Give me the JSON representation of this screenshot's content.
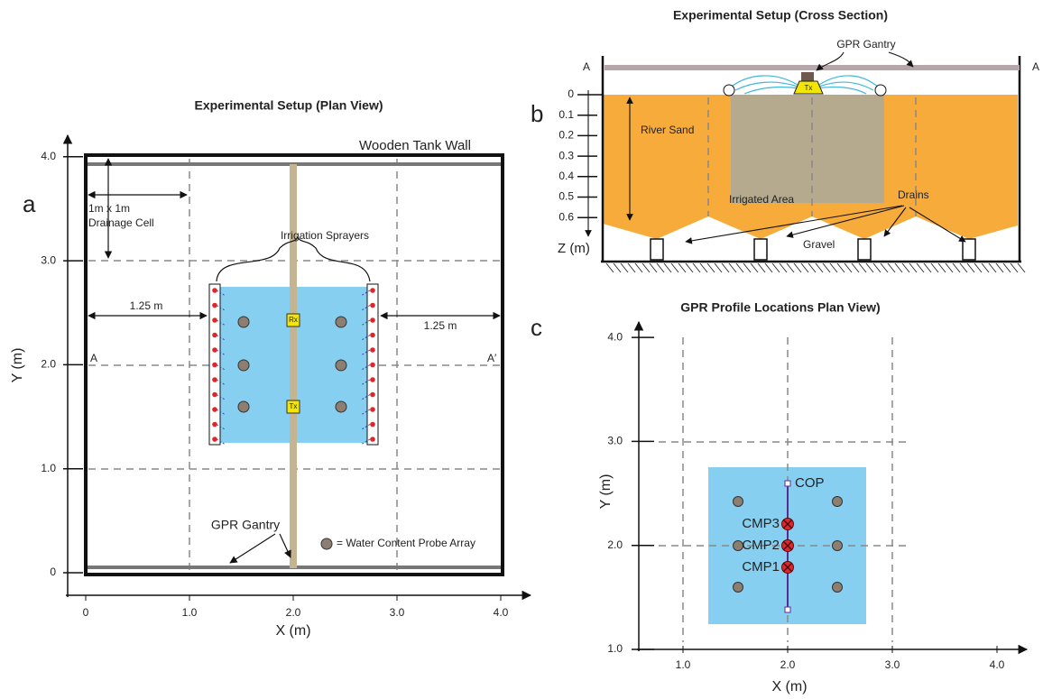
{
  "plan_view": {
    "panel_label": "a",
    "title": "Experimental Setup (Plan View)",
    "x_axis_label": "X (m)",
    "y_axis_label": "Y (m)",
    "x_ticks": [
      "0",
      "1.0",
      "2.0",
      "3.0",
      "4.0"
    ],
    "y_ticks": [
      "0",
      "1.0",
      "2.0",
      "3.0",
      "4.0"
    ],
    "annotations": {
      "tank_wall": "Wooden Tank Wall",
      "cell_line1": "1m x 1m",
      "cell_line2": "Drainage Cell",
      "sprayers": "Irrigation Sprayers",
      "left_distance": "1.25 m",
      "right_distance": "1.25 m",
      "section_start": "A",
      "section_end": "A′",
      "gantry": "GPR Gantry",
      "probe_legend": "= Water Content Probe Array",
      "receiver": "Rx",
      "transmitter": "Tx"
    }
  },
  "cross_section": {
    "panel_label": "b",
    "title": "Experimental Setup (Cross Section)",
    "z_axis_label": "Z (m)",
    "z_ticks": [
      "0",
      "0.1",
      "0.2",
      "0.3",
      "0.4",
      "0.5",
      "0.6"
    ],
    "annotations": {
      "section_start": "A",
      "section_end": "A",
      "gantry": "GPR Gantry",
      "sand": "River Sand",
      "irrigated": "Irrigated Area",
      "drains": "Drains",
      "gravel": "Gravel",
      "transmitter": "Tx"
    }
  },
  "profile_view": {
    "panel_label": "c",
    "title": "GPR Profile Locations Plan View)",
    "x_axis_label": "X (m)",
    "y_axis_label": "Y (m)",
    "x_ticks": [
      "1.0",
      "2.0",
      "3.0",
      "4.0"
    ],
    "y_ticks": [
      "1.0",
      "2.0",
      "3.0",
      "4.0"
    ],
    "profiles": [
      "COP",
      "CMP3",
      "CMP2",
      "CMP1"
    ]
  }
}
